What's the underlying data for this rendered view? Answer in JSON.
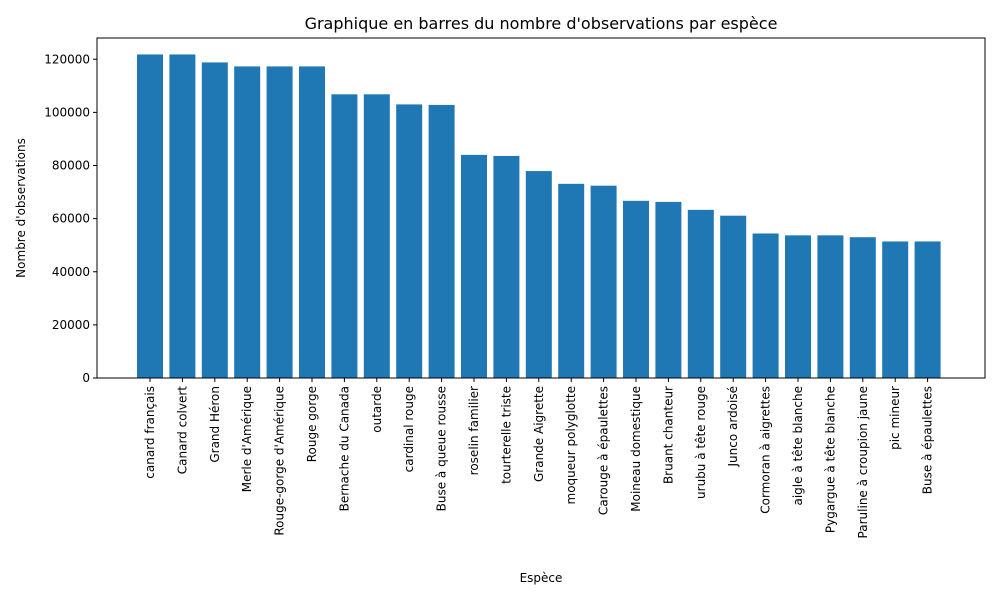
{
  "chart_data": {
    "type": "bar",
    "title": "Graphique en barres du nombre d'observations par espèce",
    "xlabel": "Espèce",
    "ylabel": "Nombre d'observations",
    "categories": [
      "canard français",
      "Canard colvert",
      "Grand Héron",
      "Merle d'Amérique",
      "Rouge-gorge d'Amérique",
      "Rouge gorge",
      "Bernache du Canada",
      "outarde",
      "cardinal rouge",
      "Buse à queue rousse",
      "roselin familier",
      "tourterelle triste",
      "Grande Aigrette",
      "moqueur polyglotte",
      "Carouge à épaulettes",
      "Moineau domestique",
      "Bruant chanteur",
      "urubu à tête rouge",
      "Junco ardoisé",
      "Cormoran à aigrettes",
      "aigle à tête blanche",
      "Pygargue à tête blanche",
      "Paruline à croupion jaune",
      "pic mineur",
      "Buse à épaulettes"
    ],
    "values": [
      121800,
      121800,
      118800,
      117300,
      117300,
      117300,
      106800,
      106800,
      103000,
      102800,
      84000,
      83600,
      77900,
      73100,
      72400,
      66700,
      66300,
      63300,
      61100,
      54400,
      53700,
      53700,
      53000,
      51400,
      51400
    ],
    "ylim": [
      0,
      128000
    ],
    "yticks": [
      0,
      20000,
      40000,
      60000,
      80000,
      100000,
      120000
    ],
    "grid": false,
    "bar_color": "#1f77b4"
  }
}
